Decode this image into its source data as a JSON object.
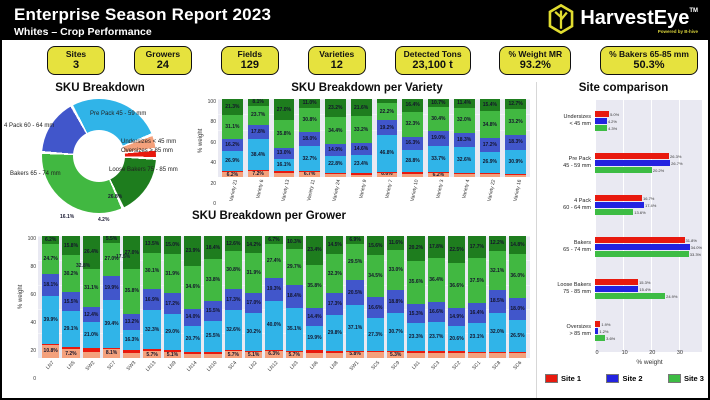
{
  "header": {
    "title": "Enterprise Season Report 2023",
    "subtitle": "Whites – Crop Performance",
    "brand": "HarvestEye",
    "brand_tm": "TM",
    "powered_by": "Powered by B-hive"
  },
  "kpis": [
    {
      "label": "Sites",
      "value": "3"
    },
    {
      "label": "Growers",
      "value": "24"
    },
    {
      "label": "Fields",
      "value": "129"
    },
    {
      "label": "Varieties",
      "value": "12"
    },
    {
      "label": "Detected Tons",
      "value": "23,100 t"
    },
    {
      "label": "% Weight MR",
      "value": "93.2%"
    },
    {
      "label": "% Bakers 65-85 mm",
      "value": "50.3%"
    }
  ],
  "colors": {
    "undersizes": "#f4a17c",
    "oversizes": "#e8190e",
    "prepack": "#30b4e8",
    "fourpack": "#4156cb",
    "bakers": "#41b841",
    "loosebakers": "#1e7d1e",
    "site1": "#e8190e",
    "site2": "#2222e0",
    "site3": "#3dbc44",
    "kpi_yellow": "#e6e23e",
    "plot_bg": "#e9e9f2"
  },
  "chart_data": [
    {
      "id": "sku_breakdown",
      "type": "pie",
      "title": "SKU Breakdown",
      "donut": true,
      "slices": [
        {
          "label": "Pre Pack 45 - 59 mm",
          "value": 26.8,
          "color_key": "prepack"
        },
        {
          "label": "Undersizes < 45 mm",
          "value": 4.2,
          "color_key": "undersizes"
        },
        {
          "label": "Oversizes > 85 mm",
          "value": 2.6,
          "color_key": "oversizes"
        },
        {
          "label": "Loose Bakers 75 - 85 mm",
          "value": 17.5,
          "color_key": "loosebakers"
        },
        {
          "label": "Bakers 65 - 74 mm",
          "value": 32.8,
          "color_key": "bakers"
        },
        {
          "label": "4 Pack 60 - 64 mm",
          "value": 16.1,
          "color_key": "fourpack"
        }
      ]
    },
    {
      "id": "sku_per_variety",
      "type": "bar",
      "stacked": true,
      "title": "SKU Breakdown per Variety",
      "ylabel": "% weight",
      "ylim": [
        0,
        100
      ],
      "yticks": [
        0,
        20,
        40,
        60,
        80,
        100
      ],
      "label_min": 6.0,
      "categories": [
        "Variety 21",
        "Variety 6",
        "Variety 13",
        "Variety 11",
        "Variety 24",
        "Variety 9",
        "Variety 7",
        "Variety 10",
        "Variety 3",
        "Variety 4",
        "Variety 22",
        "Variety 16"
      ],
      "series": [
        {
          "name": "Undersizes < 45 mm",
          "color_key": "undersizes",
          "values": [
            6.2,
            7.2,
            5.0,
            6.7,
            3.5,
            3.0,
            6.6,
            4.0,
            6.2,
            4.5,
            4.0,
            3.0
          ]
        },
        {
          "name": "Oversizes > 85 mm",
          "color_key": "oversizes",
          "values": [
            1.5,
            1.0,
            2.5,
            0.5,
            1.3,
            1.7,
            0.3,
            2.0,
            0.4,
            1.2,
            1.7,
            0.8
          ]
        },
        {
          "name": "Pre Pack 45 - 59 mm",
          "color_key": "prepack",
          "values": [
            26.9,
            38.4,
            16.1,
            32.7,
            22.8,
            23.4,
            46.8,
            28.8,
            33.7,
            32.6,
            26.9,
            30.9
          ]
        },
        {
          "name": "4 Pack 60 - 64 mm",
          "color_key": "fourpack",
          "values": [
            16.2,
            17.8,
            13.0,
            18.0,
            14.9,
            14.6,
            19.2,
            16.3,
            19.0,
            18.3,
            17.2,
            18.3
          ]
        },
        {
          "name": "Bakers 65 - 74 mm",
          "color_key": "bakers",
          "values": [
            31.1,
            23.7,
            35.8,
            30.8,
            34.4,
            33.2,
            22.2,
            32.3,
            30.4,
            32.0,
            34.8,
            33.2
          ]
        },
        {
          "name": "Loose Bakers 75 - 85 mm",
          "color_key": "loosebakers",
          "values": [
            21.3,
            8.1,
            27.0,
            11.0,
            23.2,
            21.6,
            5.0,
            16.4,
            10.7,
            11.4,
            15.4,
            12.7
          ]
        }
      ]
    },
    {
      "id": "sku_per_grower",
      "type": "bar",
      "stacked": true,
      "title": "SKU Breakdown per Grower",
      "ylabel": "% weight",
      "ylim": [
        0,
        100
      ],
      "yticks": [
        0,
        20,
        40,
        60,
        80,
        100
      ],
      "label_min": 5.1,
      "categories": [
        "LN7",
        "LN5",
        "SW2",
        "SC7",
        "SW3",
        "LN13",
        "LN9",
        "LN14",
        "LN10",
        "SC4",
        "LN2",
        "LN12",
        "LN3",
        "LN6",
        "LN8",
        "SW1",
        "SC5",
        "SC9",
        "LN1",
        "SC3",
        "SC2",
        "SC1",
        "SC8",
        "SC6"
      ],
      "series": [
        {
          "name": "Undersizes < 45 mm",
          "color_key": "undersizes",
          "values": [
            10.8,
            7.2,
            5.0,
            8.1,
            4.0,
            5.7,
            5.1,
            3.5,
            3.5,
            5.7,
            5.1,
            6.3,
            5.7,
            4.0,
            4.0,
            5.8,
            4.5,
            5.3,
            4.0,
            4.0,
            4.0,
            4.5,
            4.5,
            4.0
          ]
        },
        {
          "name": "Oversizes > 85 mm",
          "color_key": "oversizes",
          "values": [
            0.5,
            2.0,
            3.0,
            0.5,
            2.5,
            1.5,
            1.5,
            1.5,
            1.0,
            0.5,
            1.0,
            0.5,
            0.4,
            2.5,
            1.5,
            0.3,
            1.0,
            0.5,
            1.5,
            1.5,
            1.5,
            0.8,
            0.7,
            0.7
          ]
        },
        {
          "name": "Pre Pack 45 - 59 mm",
          "color_key": "prepack",
          "values": [
            39.9,
            29.1,
            21.0,
            39.4,
            16.3,
            32.3,
            29.0,
            20.7,
            25.5,
            32.6,
            30.2,
            40.0,
            35.1,
            19.9,
            29.8,
            37.1,
            27.3,
            30.7,
            23.3,
            23.7,
            20.6,
            23.1,
            32.0,
            26.5
          ]
        },
        {
          "name": "4 Pack 60 - 64 mm",
          "color_key": "fourpack",
          "values": [
            18.1,
            15.5,
            12.4,
            19.9,
            13.2,
            16.9,
            17.2,
            14.0,
            15.5,
            17.3,
            17.0,
            19.3,
            18.4,
            14.4,
            17.3,
            20.5,
            16.6,
            18.8,
            15.3,
            16.6,
            14.9,
            16.4,
            18.5,
            18.0
          ]
        },
        {
          "name": "Bakers 65 - 74 mm",
          "color_key": "bakers",
          "values": [
            24.7,
            30.2,
            31.1,
            27.0,
            35.8,
            30.1,
            31.9,
            34.6,
            33.8,
            30.8,
            31.9,
            27.4,
            29.7,
            35.8,
            32.3,
            29.5,
            34.5,
            33.0,
            35.6,
            36.4,
            36.6,
            37.5,
            32.1,
            36.0
          ]
        },
        {
          "name": "Loose Bakers 75 - 85 mm",
          "color_key": "loosebakers",
          "values": [
            6.2,
            15.8,
            26.4,
            5.5,
            27.0,
            13.5,
            15.0,
            23.9,
            18.4,
            12.6,
            14.2,
            6.7,
            10.3,
            23.4,
            14.5,
            6.9,
            15.6,
            11.6,
            20.2,
            17.8,
            22.5,
            17.7,
            12.2,
            14.8
          ]
        }
      ]
    },
    {
      "id": "site_comparison",
      "type": "bar",
      "orientation": "horizontal",
      "grouped": true,
      "title": "Site comparison",
      "xlabel": "% weight",
      "xlim": [
        0,
        38
      ],
      "xticks": [
        0,
        10,
        20,
        30
      ],
      "categories": [
        [
          "Undersizes",
          "< 45 mm"
        ],
        [
          "Pre Pack",
          "45 - 59 mm"
        ],
        [
          "4 Pack",
          "60 - 64 mm"
        ],
        [
          "Bakers",
          "65 - 74 mm"
        ],
        [
          "Loose Bakers",
          "75 - 85 mm"
        ],
        [
          "Oversizes",
          "> 85 mm"
        ]
      ],
      "series": [
        {
          "name": "Site 1",
          "color_key": "site1",
          "values": [
            5.0,
            26.3,
            16.7,
            31.8,
            15.3,
            1.9
          ]
        },
        {
          "name": "Site 2",
          "color_key": "site2",
          "values": [
            4.2,
            26.7,
            17.4,
            34.0,
            15.4,
            1.2
          ]
        },
        {
          "name": "Site 3",
          "color_key": "site3",
          "values": [
            4.3,
            20.2,
            13.6,
            33.3,
            24.9,
            3.6
          ]
        }
      ]
    }
  ]
}
